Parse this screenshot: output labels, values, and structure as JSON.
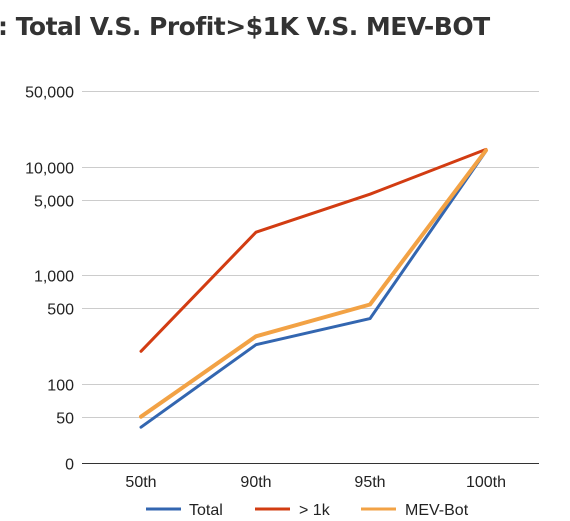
{
  "chart_data": {
    "type": "line",
    "title": ": Total V.S. Profit>$1K V.S. MEV-BOT",
    "xlabel": "",
    "ylabel": "",
    "y_scale": "log",
    "categories": [
      "50th",
      "90th",
      "95th",
      "100th"
    ],
    "y_ticks": [
      {
        "label": "50,000",
        "value": 50000
      },
      {
        "label": "10,000",
        "value": 10000
      },
      {
        "label": "5,000",
        "value": 5000
      },
      {
        "label": "1,000",
        "value": 1000
      },
      {
        "label": "500",
        "value": 500
      },
      {
        "label": "100",
        "value": 100
      },
      {
        "label": "50",
        "value": 50
      },
      {
        "label": "0",
        "value": 0
      }
    ],
    "grid": true,
    "legend_position": "bottom",
    "series": [
      {
        "name": "Total",
        "color": "#3366b0",
        "values": [
          40,
          230,
          400,
          14000
        ]
      },
      {
        "name": "> 1k",
        "color": "#d23c12",
        "values": [
          200,
          2500,
          5600,
          14500
        ]
      },
      {
        "name": "MEV-Bot",
        "color": "#f2a245",
        "values": [
          50,
          275,
          540,
          14200
        ]
      }
    ]
  }
}
